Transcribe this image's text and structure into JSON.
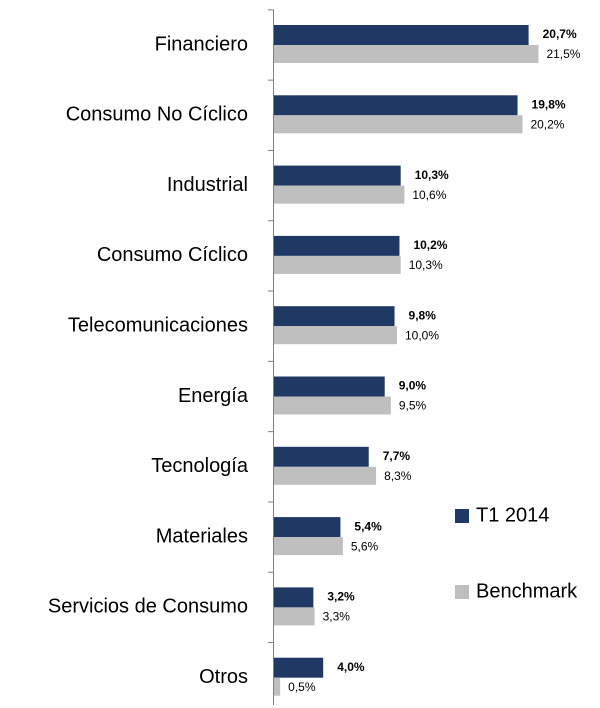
{
  "chart_data": {
    "type": "bar",
    "orientation": "horizontal",
    "categories": [
      "Financiero",
      "Consumo No Cíclico",
      "Industrial",
      "Consumo Cíclico",
      "Telecomunicaciones",
      "Energía",
      "Tecnología",
      "Materiales",
      "Servicios de Consumo",
      "Otros"
    ],
    "series": [
      {
        "name": "T1 2014",
        "color": "#1f3864",
        "values": [
          20.7,
          19.8,
          10.3,
          10.2,
          9.8,
          9.0,
          7.7,
          5.4,
          3.2,
          4.0
        ],
        "value_labels": [
          "20,7%",
          "19,8%",
          "10,3%",
          "10,2%",
          "9,8%",
          "9,0%",
          "7,7%",
          "5,4%",
          "3,2%",
          "4,0%"
        ]
      },
      {
        "name": "Benchmark",
        "color": "#bfbfbf",
        "values": [
          21.5,
          20.2,
          10.6,
          10.3,
          10.0,
          9.5,
          8.3,
          5.6,
          3.3,
          0.5
        ],
        "value_labels": [
          "21,5%",
          "20,2%",
          "10,6%",
          "10,3%",
          "10,0%",
          "9,5%",
          "8,3%",
          "5,6%",
          "3,3%",
          "0,5%"
        ]
      }
    ],
    "legend": "right"
  }
}
